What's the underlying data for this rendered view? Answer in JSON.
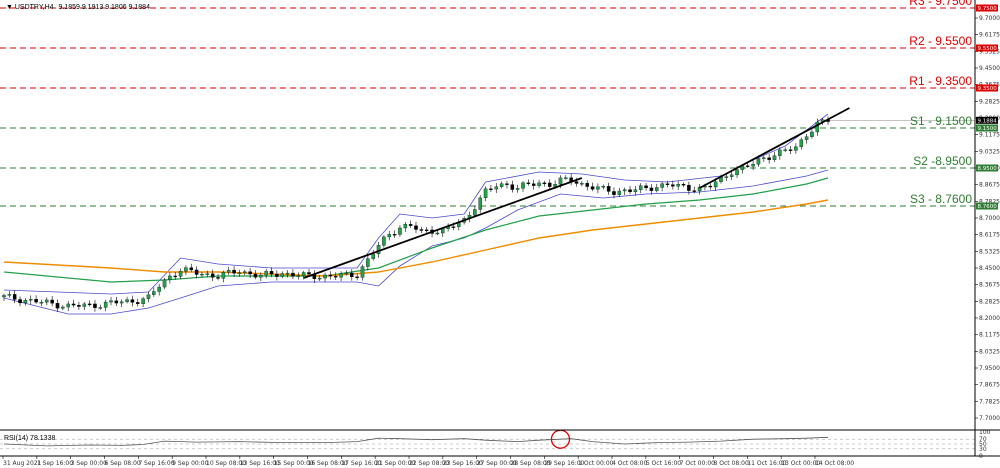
{
  "header": {
    "symbol_label": "USDTRY,H4",
    "ohlc_label": "9.1859 9.1913 9.1806 9.1884",
    "rsi_label": "RSI(14) 78.1338"
  },
  "colors": {
    "resistance": "#e00000",
    "support": "#2e7d32",
    "price_badge": "#000000",
    "bollinger": "#4a4ad0",
    "ma_mid": "#22a04a",
    "ma_slow": "#f08c00",
    "trendline": "#000000",
    "candle_up": "#22a04a",
    "candle_down": "#000000",
    "rsi_line": "#555555",
    "highlight_circle": "#e00000"
  },
  "chart_data": {
    "type": "line",
    "instrument": "USDTRY",
    "timeframe": "H4",
    "ylim": [
      7.64,
      9.79
    ],
    "y_ticks": [
      "9.7825",
      "9.7000",
      "9.6175",
      "9.5325",
      "9.4500",
      "9.3675",
      "9.2825",
      "9.2000",
      "9.1175",
      "9.0325",
      "8.9500",
      "8.8675",
      "8.7825",
      "8.7000",
      "8.6175",
      "8.5325",
      "8.4500",
      "8.3675",
      "8.2825",
      "8.2000",
      "8.1175",
      "8.0325",
      "7.9500",
      "7.8675",
      "7.7825",
      "7.7000",
      "7.6175"
    ],
    "x_ticks": [
      "31 Aug 2021",
      "1 Sep 16:00",
      "3 Sep 00:00",
      "6 Sep 08:00",
      "7 Sep 16:00",
      "9 Sep 00:00",
      "10 Sep 08:00",
      "13 Sep 16:00",
      "15 Sep 00:00",
      "16 Sep 08:00",
      "17 Sep 16:00",
      "21 Sep 00:00",
      "22 Sep 08:00",
      "23 Sep 16:00",
      "27 Sep 00:00",
      "28 Sep 08:00",
      "29 Sep 16:00",
      "1 Oct 00:00",
      "4 Oct 08:00",
      "5 Oct 16:00",
      "7 Oct 00:00",
      "8 Oct 08:00",
      "11 Oct 16:00",
      "13 Oct 00:00",
      "14 Oct 08:00"
    ],
    "levels": [
      {
        "label": "R3 - 9.7500",
        "badge": "9.7500",
        "value": 9.75,
        "kind": "resistance"
      },
      {
        "label": "R2 - 9.5500",
        "badge": "9.5500",
        "value": 9.55,
        "kind": "resistance"
      },
      {
        "label": "R1 - 9.3500",
        "badge": "9.3500",
        "value": 9.35,
        "kind": "resistance"
      },
      {
        "label": "S1 - 9.1500",
        "badge": "9.1500",
        "value": 9.15,
        "kind": "support"
      },
      {
        "label": "S2 -8.9500",
        "badge": "8.9500",
        "value": 8.95,
        "kind": "support"
      },
      {
        "label": "S3 - 8.7600",
        "badge": "8.7600",
        "value": 8.76,
        "kind": "support"
      }
    ],
    "current_price": {
      "value": 9.1884,
      "badge": "9.1884"
    },
    "close_anchors": [
      [
        0,
        8.305
      ],
      [
        4,
        8.29
      ],
      [
        8,
        8.275
      ],
      [
        12,
        8.26
      ],
      [
        16,
        8.262
      ],
      [
        20,
        8.275
      ],
      [
        24,
        8.285
      ],
      [
        27,
        8.3
      ],
      [
        29,
        8.36
      ],
      [
        31,
        8.41
      ],
      [
        33,
        8.44
      ],
      [
        36,
        8.425
      ],
      [
        40,
        8.41
      ],
      [
        44,
        8.435
      ],
      [
        48,
        8.41
      ],
      [
        52,
        8.425
      ],
      [
        56,
        8.41
      ],
      [
        60,
        8.41
      ],
      [
        64,
        8.41
      ],
      [
        66,
        8.42
      ],
      [
        68,
        8.49
      ],
      [
        70,
        8.56
      ],
      [
        72,
        8.62
      ],
      [
        74,
        8.655
      ],
      [
        76,
        8.66
      ],
      [
        78,
        8.63
      ],
      [
        80,
        8.64
      ],
      [
        82,
        8.635
      ],
      [
        84,
        8.66
      ],
      [
        86,
        8.69
      ],
      [
        88,
        8.76
      ],
      [
        90,
        8.83
      ],
      [
        92,
        8.86
      ],
      [
        94,
        8.87
      ],
      [
        96,
        8.85
      ],
      [
        98,
        8.865
      ],
      [
        100,
        8.875
      ],
      [
        102,
        8.87
      ],
      [
        104,
        8.885
      ],
      [
        106,
        8.89
      ],
      [
        108,
        8.87
      ],
      [
        110,
        8.855
      ],
      [
        112,
        8.84
      ],
      [
        114,
        8.83
      ],
      [
        116,
        8.84
      ],
      [
        118,
        8.84
      ],
      [
        120,
        8.845
      ],
      [
        122,
        8.86
      ],
      [
        124,
        8.87
      ],
      [
        126,
        8.855
      ],
      [
        128,
        8.85
      ],
      [
        130,
        8.85
      ],
      [
        132,
        8.86
      ],
      [
        134,
        8.89
      ],
      [
        136,
        8.935
      ],
      [
        138,
        8.95
      ],
      [
        140,
        8.97
      ],
      [
        142,
        9.0
      ],
      [
        144,
        9.02
      ],
      [
        146,
        9.035
      ],
      [
        148,
        9.05
      ],
      [
        150,
        9.12
      ],
      [
        152,
        9.17
      ],
      [
        154,
        9.185
      ]
    ],
    "bollinger_upper": [
      [
        0,
        8.34
      ],
      [
        20,
        8.32
      ],
      [
        27,
        8.33
      ],
      [
        33,
        8.5
      ],
      [
        40,
        8.47
      ],
      [
        50,
        8.45
      ],
      [
        60,
        8.45
      ],
      [
        66,
        8.45
      ],
      [
        70,
        8.6
      ],
      [
        74,
        8.72
      ],
      [
        80,
        8.7
      ],
      [
        86,
        8.72
      ],
      [
        90,
        8.88
      ],
      [
        100,
        8.93
      ],
      [
        108,
        8.92
      ],
      [
        116,
        8.89
      ],
      [
        124,
        8.88
      ],
      [
        134,
        8.91
      ],
      [
        140,
        8.99
      ],
      [
        146,
        9.06
      ],
      [
        154,
        9.22
      ]
    ],
    "bollinger_lower": [
      [
        0,
        8.3
      ],
      [
        12,
        8.22
      ],
      [
        20,
        8.22
      ],
      [
        27,
        8.25
      ],
      [
        33,
        8.3
      ],
      [
        40,
        8.36
      ],
      [
        50,
        8.38
      ],
      [
        60,
        8.38
      ],
      [
        66,
        8.38
      ],
      [
        70,
        8.36
      ],
      [
        74,
        8.46
      ],
      [
        80,
        8.56
      ],
      [
        86,
        8.6
      ],
      [
        90,
        8.65
      ],
      [
        96,
        8.74
      ],
      [
        104,
        8.82
      ],
      [
        112,
        8.8
      ],
      [
        120,
        8.82
      ],
      [
        130,
        8.83
      ],
      [
        140,
        8.86
      ],
      [
        150,
        8.91
      ],
      [
        154,
        8.94
      ]
    ],
    "ma_mid": [
      [
        0,
        8.43
      ],
      [
        20,
        8.38
      ],
      [
        30,
        8.39
      ],
      [
        40,
        8.41
      ],
      [
        50,
        8.41
      ],
      [
        60,
        8.41
      ],
      [
        70,
        8.45
      ],
      [
        80,
        8.55
      ],
      [
        90,
        8.64
      ],
      [
        100,
        8.71
      ],
      [
        110,
        8.74
      ],
      [
        120,
        8.77
      ],
      [
        130,
        8.79
      ],
      [
        140,
        8.82
      ],
      [
        150,
        8.87
      ],
      [
        154,
        8.9
      ]
    ],
    "ma_slow": [
      [
        0,
        8.48
      ],
      [
        20,
        8.45
      ],
      [
        30,
        8.43
      ],
      [
        40,
        8.43
      ],
      [
        50,
        8.42
      ],
      [
        60,
        8.41
      ],
      [
        70,
        8.43
      ],
      [
        80,
        8.48
      ],
      [
        90,
        8.54
      ],
      [
        100,
        8.6
      ],
      [
        110,
        8.64
      ],
      [
        120,
        8.67
      ],
      [
        130,
        8.7
      ],
      [
        140,
        8.73
      ],
      [
        150,
        8.77
      ],
      [
        154,
        8.79
      ]
    ],
    "trendlines": [
      [
        [
          56,
          8.4
        ],
        [
          108,
          8.9
        ]
      ],
      [
        [
          130,
          8.85
        ],
        [
          158,
          9.25
        ]
      ]
    ],
    "rsi": {
      "ylim": [
        0,
        100
      ],
      "ticks": [
        "100",
        "70",
        "50",
        "30",
        "0"
      ],
      "points": [
        [
          0,
          50
        ],
        [
          8,
          42
        ],
        [
          16,
          46
        ],
        [
          22,
          44
        ],
        [
          26,
          48
        ],
        [
          30,
          62
        ],
        [
          36,
          58
        ],
        [
          44,
          60
        ],
        [
          52,
          56
        ],
        [
          60,
          56
        ],
        [
          66,
          60
        ],
        [
          70,
          74
        ],
        [
          74,
          72
        ],
        [
          80,
          68
        ],
        [
          86,
          72
        ],
        [
          90,
          66
        ],
        [
          96,
          60
        ],
        [
          100,
          66
        ],
        [
          104,
          70
        ],
        [
          106,
          72
        ],
        [
          110,
          60
        ],
        [
          116,
          50
        ],
        [
          122,
          56
        ],
        [
          128,
          58
        ],
        [
          134,
          62
        ],
        [
          140,
          70
        ],
        [
          146,
          72
        ],
        [
          150,
          74
        ],
        [
          154,
          78
        ]
      ],
      "highlight_x": 104
    }
  }
}
